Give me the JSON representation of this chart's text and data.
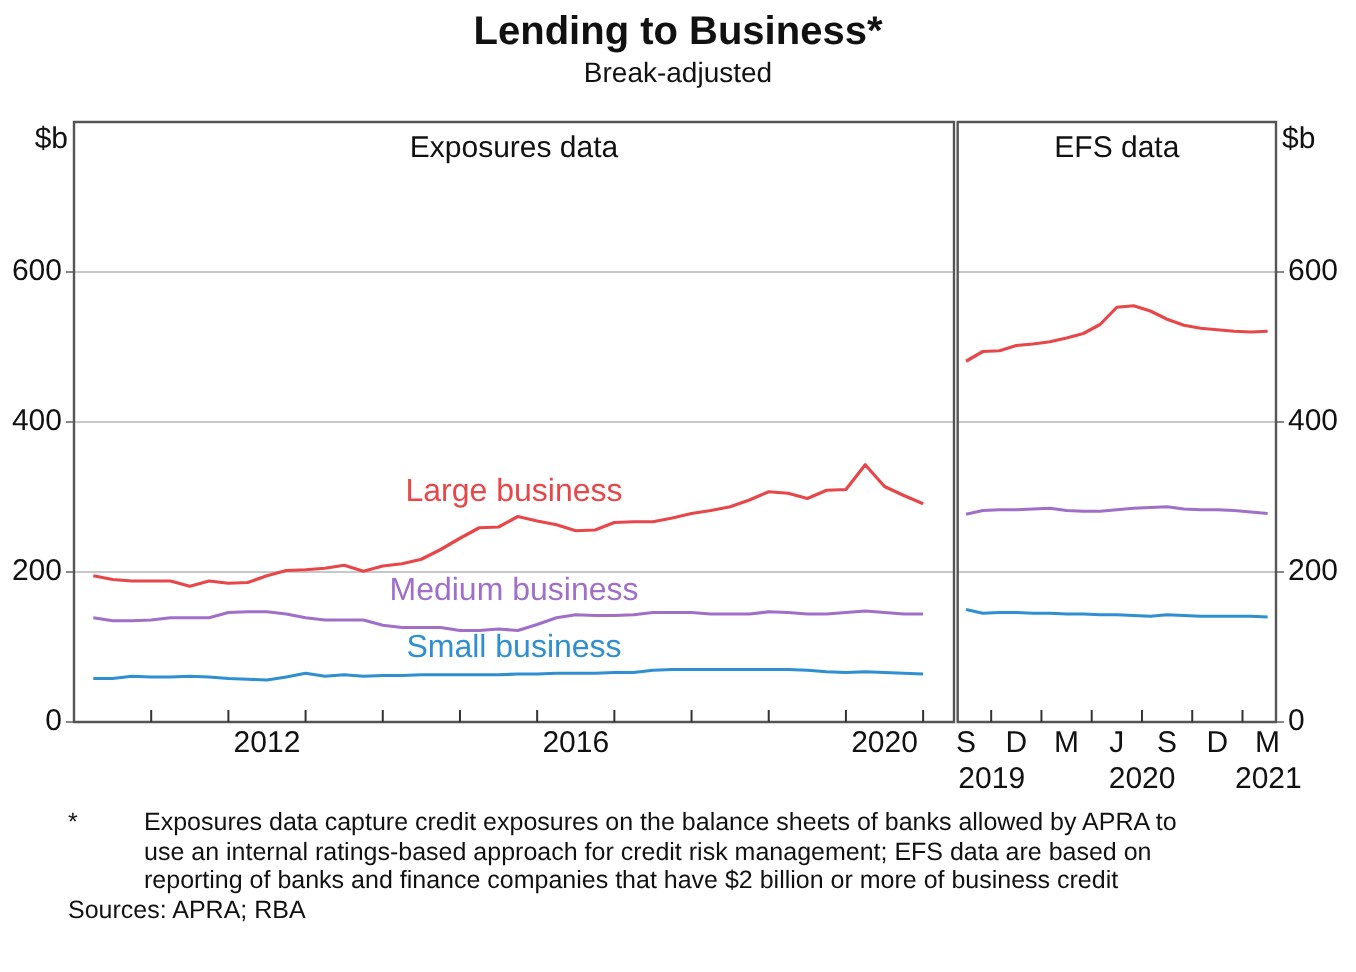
{
  "chart_data": [
    {
      "type": "line",
      "title": "Lending to Business*",
      "subtitle": "Break-adjusted",
      "ylabel": "$b",
      "annotations": [
        "Exposures data",
        "*",
        "Exposures data capture credit exposures on the balance sheets of banks allowed by APRA to use an internal ratings-based approach for credit risk management; EFS data are based on reporting of banks and finance companies that have $2 billion or more of business credit",
        "Sources: APRA; RBA"
      ],
      "x": [
        2010.25,
        2010.5,
        2010.75,
        2011,
        2011.25,
        2011.5,
        2011.75,
        2012,
        2012.25,
        2012.5,
        2012.75,
        2013,
        2013.25,
        2013.5,
        2013.75,
        2014,
        2014.25,
        2014.5,
        2014.75,
        2015,
        2015.25,
        2015.5,
        2015.75,
        2016,
        2016.25,
        2016.5,
        2016.75,
        2017,
        2017.25,
        2017.5,
        2017.75,
        2018,
        2018.25,
        2018.5,
        2018.75,
        2019,
        2019.25,
        2019.5,
        2019.75,
        2020,
        2020.25,
        2020.5,
        2020.75,
        2021
      ],
      "series": [
        {
          "name": "Large business",
          "color": "#e8474a",
          "values": [
            195,
            190,
            188,
            188,
            188,
            181,
            188,
            185,
            186,
            195,
            202,
            203,
            205,
            209,
            201,
            208,
            211,
            217,
            230,
            245,
            259,
            260,
            274,
            268,
            263,
            255,
            256,
            266,
            267,
            267,
            272,
            278,
            282,
            287,
            296,
            307,
            305,
            298,
            309,
            310,
            343,
            314,
            302,
            291
          ]
        },
        {
          "name": "Medium business",
          "color": "#a070c8",
          "values": [
            139,
            135,
            135,
            136,
            139,
            139,
            139,
            146,
            147,
            147,
            144,
            139,
            136,
            136,
            136,
            129,
            126,
            126,
            126,
            122,
            122,
            124,
            122,
            130,
            139,
            143,
            142,
            142,
            143,
            146,
            146,
            146,
            144,
            144,
            144,
            147,
            146,
            144,
            144,
            146,
            148,
            146,
            144,
            144
          ]
        },
        {
          "name": "Small business",
          "color": "#2f8fd0",
          "values": [
            58,
            58,
            61,
            60,
            60,
            61,
            60,
            58,
            57,
            56,
            60,
            65,
            61,
            63,
            61,
            62,
            62,
            63,
            63,
            63,
            63,
            63,
            64,
            64,
            65,
            65,
            65,
            66,
            66,
            69,
            70,
            70,
            70,
            70,
            70,
            70,
            70,
            69,
            67,
            66,
            67,
            66,
            65,
            64
          ]
        }
      ],
      "xlim": [
        2010,
        2021.4
      ],
      "xticks": [
        {
          "value": 2011,
          "label": null
        },
        {
          "value": 2012,
          "label": null
        },
        {
          "value": 2012.5,
          "label": "2012"
        },
        {
          "value": 2013,
          "label": null
        },
        {
          "value": 2014,
          "label": null
        },
        {
          "value": 2015,
          "label": null
        },
        {
          "value": 2016,
          "label": null
        },
        {
          "value": 2016.5,
          "label": "2016"
        },
        {
          "value": 2017,
          "label": null
        },
        {
          "value": 2018,
          "label": null
        },
        {
          "value": 2019,
          "label": null
        },
        {
          "value": 2020,
          "label": null
        },
        {
          "value": 2020.5,
          "label": "2020"
        },
        {
          "value": 2021,
          "label": null
        }
      ],
      "ylim": [
        0,
        800
      ],
      "yticks": [
        0,
        200,
        400,
        600
      ],
      "grid": "y",
      "legend": false
    },
    {
      "type": "line",
      "ylabel": "$b",
      "annotations": [
        "EFS data"
      ],
      "categories": [
        "S",
        null,
        null,
        "D",
        null,
        null,
        "M",
        null,
        null,
        "J",
        null,
        null,
        "S",
        null,
        null,
        "D",
        null,
        null,
        "M"
      ],
      "series": [
        {
          "color": "#e8474a",
          "values": [
            481,
            494,
            495,
            502,
            504,
            507,
            512,
            518,
            530,
            553,
            555,
            548,
            537,
            529,
            525,
            523,
            521,
            520,
            521
          ]
        },
        {
          "color": "#a070c8",
          "values": [
            277,
            282,
            283,
            283,
            284,
            285,
            282,
            281,
            281,
            283,
            285,
            286,
            287,
            284,
            283,
            283,
            282,
            280,
            278
          ]
        },
        {
          "color": "#2f8fd0",
          "values": [
            150,
            145,
            146,
            146,
            145,
            145,
            144,
            144,
            143,
            143,
            142,
            141,
            143,
            142,
            141,
            141,
            141,
            141,
            140
          ]
        }
      ],
      "x2lim": [
        "2019-07-16",
        "2021-02-15"
      ],
      "x2ticks": [
        {
          "value": "2019-09-16",
          "label": "2019"
        },
        {
          "value": "2020-06-16",
          "label": "2020"
        },
        {
          "value": "2021-02",
          "label": "2021"
        }
      ],
      "ylim": [
        0,
        800
      ],
      "yticks": [
        0,
        200,
        400,
        600
      ],
      "grid": "y",
      "legend": false
    }
  ]
}
